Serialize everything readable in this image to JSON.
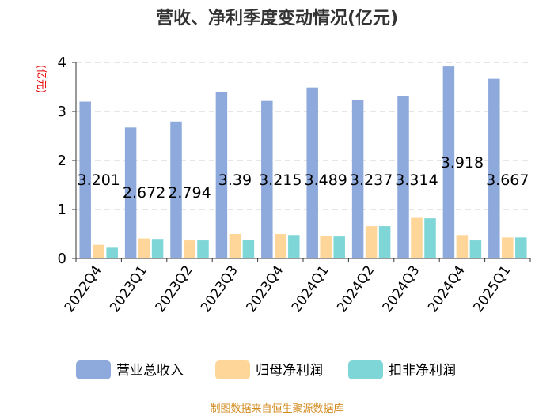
{
  "chart_data": {
    "type": "bar",
    "title": "营收、净利季度变动情况(亿元)",
    "unit_label": "(亿元)",
    "categories": [
      "2022Q4",
      "2023Q1",
      "2023Q2",
      "2023Q3",
      "2023Q4",
      "2024Q1",
      "2024Q2",
      "2024Q3",
      "2024Q4",
      "2025Q1"
    ],
    "series": [
      {
        "name": "营业总收入",
        "color": "#8eaadc",
        "values": [
          3.201,
          2.672,
          2.794,
          3.39,
          3.215,
          3.489,
          3.237,
          3.314,
          3.918,
          3.667
        ]
      },
      {
        "name": "归母净利润",
        "color": "#ffd699",
        "values": [
          0.28,
          0.41,
          0.37,
          0.5,
          0.5,
          0.46,
          0.66,
          0.83,
          0.48,
          0.43
        ]
      },
      {
        "name": "扣非净利润",
        "color": "#7fd6d6",
        "values": [
          0.22,
          0.4,
          0.37,
          0.38,
          0.48,
          0.45,
          0.66,
          0.82,
          0.37,
          0.43
        ]
      }
    ],
    "data_labels": [
      "3.201",
      "2.672",
      "2.794",
      "3.39",
      "3.215",
      "3.489",
      "3.237",
      "3.314",
      "3.918",
      "3.667"
    ],
    "y_ticks": [
      "0",
      "1",
      "2",
      "3",
      "4"
    ],
    "ylim": [
      0,
      4
    ],
    "grid": true,
    "legend_position": "bottom"
  },
  "source": "制图数据来自恒生聚源数据库"
}
